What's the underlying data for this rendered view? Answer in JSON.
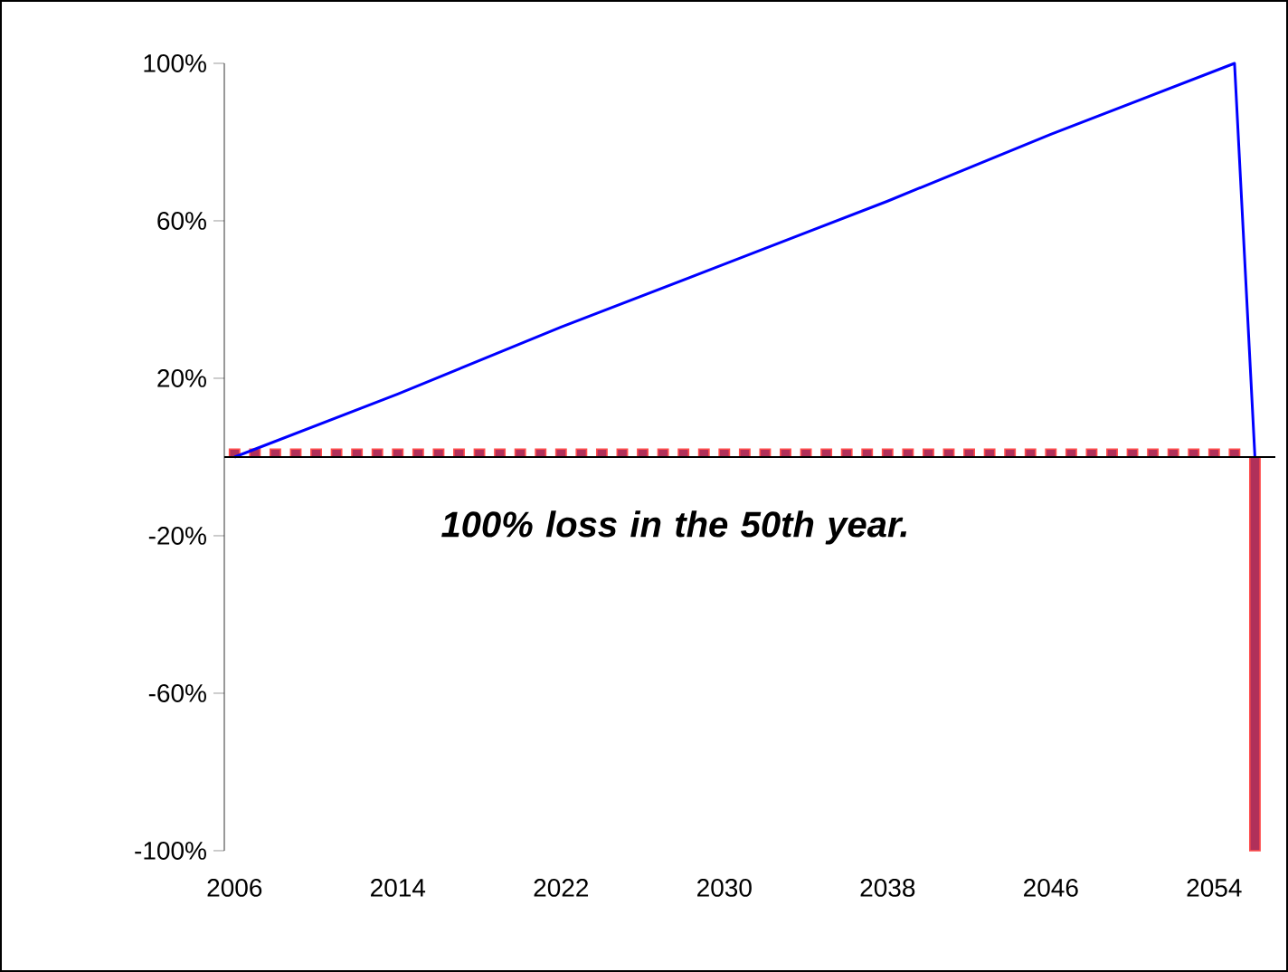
{
  "chart_data": {
    "type": "bar",
    "x": [
      2006,
      2007,
      2008,
      2009,
      2010,
      2011,
      2012,
      2013,
      2014,
      2015,
      2016,
      2017,
      2018,
      2019,
      2020,
      2021,
      2022,
      2023,
      2024,
      2025,
      2026,
      2027,
      2028,
      2029,
      2030,
      2031,
      2032,
      2033,
      2034,
      2035,
      2036,
      2037,
      2038,
      2039,
      2040,
      2041,
      2042,
      2043,
      2044,
      2045,
      2046,
      2047,
      2048,
      2049,
      2050,
      2051,
      2052,
      2053,
      2054,
      2055,
      2056
    ],
    "series": [
      {
        "color": "#b0305a",
        "values": [
          2,
          2,
          2,
          2,
          2,
          2,
          2,
          2,
          2,
          2,
          2,
          2,
          2,
          2,
          2,
          2,
          2,
          2,
          2,
          2,
          2,
          2,
          2,
          2,
          2,
          2,
          2,
          2,
          2,
          2,
          2,
          2,
          2,
          2,
          2,
          2,
          2,
          2,
          2,
          2,
          2,
          2,
          2,
          2,
          2,
          2,
          2,
          2,
          2,
          2,
          -100
        ]
      },
      {
        "type": "line",
        "color": "#0000ff",
        "x": [
          2006,
          2014,
          2022,
          2030,
          2038,
          2046,
          2055,
          2056
        ],
        "values": [
          0,
          16,
          33,
          49,
          65,
          82,
          100,
          0
        ]
      }
    ],
    "xlim": [
      2005.5,
      2057
    ],
    "xticks": [
      2006,
      2014,
      2022,
      2030,
      2038,
      2046,
      2054
    ],
    "ylim": [
      -100,
      100
    ],
    "yticks": [
      {
        "value": -100,
        "label": "-100%"
      },
      {
        "value": -60,
        "label": "-60%"
      },
      {
        "value": -20,
        "label": "-20%"
      },
      {
        "value": 20,
        "label": "20%"
      },
      {
        "value": 60,
        "label": "60%"
      },
      {
        "value": 100,
        "label": "100%"
      }
    ],
    "annotations": [
      "100% loss in the 50th year."
    ]
  }
}
